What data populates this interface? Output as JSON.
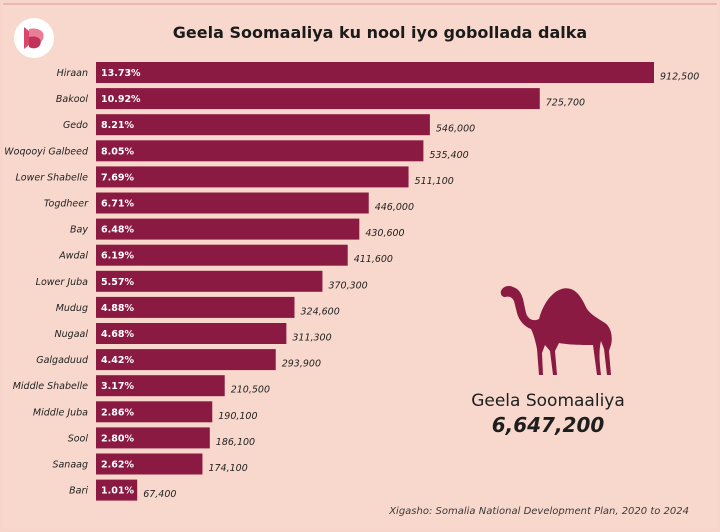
{
  "title": "Geela Soomaaliya ku nool iyo gobollada dalka",
  "total": {
    "name": "Geela Soomaaliya",
    "value": "6,647,200"
  },
  "source": "Xigasho: Somalia National Development Plan, 2020 to 2024",
  "colors": {
    "bar": "#8b1a42",
    "background": "#f8d8cd",
    "camel": "#8b1a42",
    "logo": "#d9486b"
  },
  "icons": {
    "logo": "brand-logo-icon",
    "camel": "camel-icon"
  },
  "chart_data": {
    "type": "bar",
    "orientation": "horizontal",
    "title": "Geela Soomaaliya ku nool iyo gobollada dalka",
    "categories": [
      "Hiraan",
      "Bakool",
      "Gedo",
      "Woqooyi Galbeed",
      "Lower Shabelle",
      "Togdheer",
      "Bay",
      "Awdal",
      "Lower Juba",
      "Mudug",
      "Nugaal",
      "Galgaduud",
      "Middle Shabelle",
      "Middle Juba",
      "Sool",
      "Sanaag",
      "Bari"
    ],
    "values": [
      912500,
      725700,
      546000,
      535400,
      511100,
      446000,
      430600,
      411600,
      370300,
      324600,
      311300,
      293900,
      210500,
      190100,
      186100,
      174100,
      67400
    ],
    "value_labels": [
      "912,500",
      "725,700",
      "546,000",
      "535,400",
      "511,100",
      "446,000",
      "430,600",
      "411,600",
      "370,300",
      "324,600",
      "311,300",
      "293,900",
      "210,500",
      "190,100",
      "186,100",
      "174,100",
      "67,400"
    ],
    "percent_labels": [
      "13.73%",
      "10.92%",
      "8.21%",
      "8.05%",
      "7.69%",
      "6.71%",
      "6.48%",
      "6.19%",
      "5.57%",
      "4.88%",
      "4.68%",
      "4.42%",
      "3.17%",
      "2.86%",
      "2.80%",
      "2.62%",
      "1.01%"
    ],
    "xlim": [
      0,
      912500
    ],
    "grid": false,
    "legend": "none"
  }
}
